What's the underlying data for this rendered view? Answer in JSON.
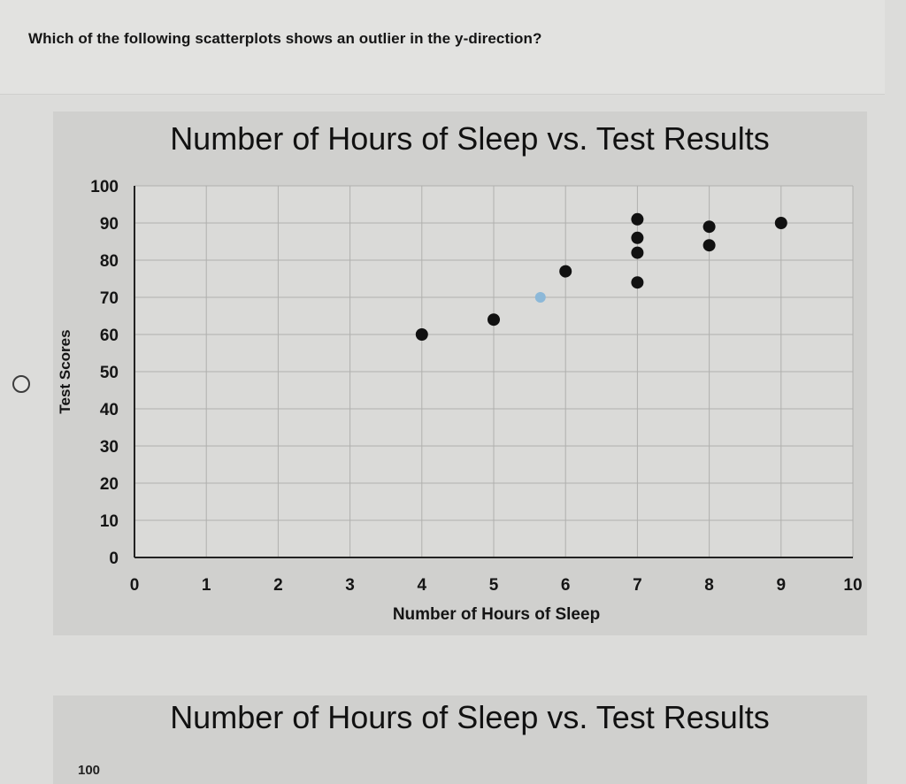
{
  "question": {
    "text": "Which of the following scatterplots shows an outlier in the y-direction?"
  },
  "colors": {
    "point": "#111111",
    "highlight_point": "#8cb8d8",
    "grid": "#b0b0ae",
    "axis": "#222222",
    "plot_bg": "#dadad8"
  },
  "option1": {
    "chart_data": {
      "type": "scatter",
      "title": "Number of Hours of Sleep vs. Test Results",
      "xlabel": "Number of Hours of Sleep",
      "ylabel": "Test Scores",
      "xlim": [
        0,
        10
      ],
      "ylim": [
        0,
        100
      ],
      "xticks": [
        "0",
        "1",
        "2",
        "3",
        "4",
        "5",
        "6",
        "7",
        "8",
        "9",
        "10"
      ],
      "yticks": [
        "0",
        "10",
        "20",
        "30",
        "40",
        "50",
        "60",
        "70",
        "80",
        "90",
        "100"
      ],
      "grid": true,
      "points": [
        {
          "x": 4,
          "y": 60
        },
        {
          "x": 5,
          "y": 64
        },
        {
          "x": 5.65,
          "y": 70,
          "highlight": true
        },
        {
          "x": 6,
          "y": 77
        },
        {
          "x": 7,
          "y": 74
        },
        {
          "x": 7,
          "y": 82
        },
        {
          "x": 7,
          "y": 86
        },
        {
          "x": 7,
          "y": 91
        },
        {
          "x": 8,
          "y": 84
        },
        {
          "x": 8,
          "y": 89
        },
        {
          "x": 9,
          "y": 90
        }
      ]
    }
  },
  "option2": {
    "title": "Number of Hours of Sleep vs. Test Results",
    "first_ytick": "100"
  }
}
